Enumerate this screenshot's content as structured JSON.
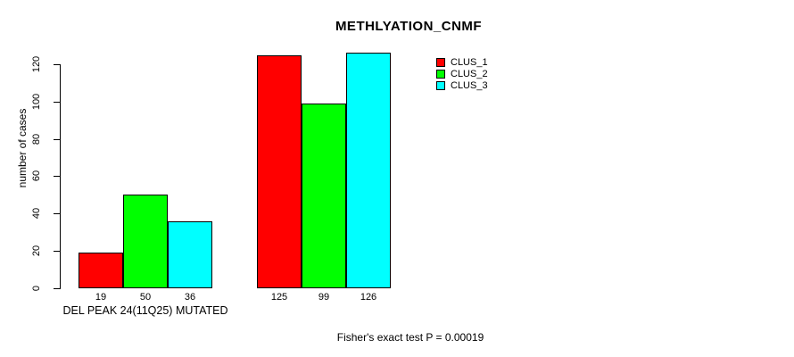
{
  "chart_data": {
    "type": "bar",
    "title": "METHLYATION_CNMF",
    "ylabel": "number of cases",
    "xlabel": "",
    "ylim": [
      0,
      130
    ],
    "y_ticks": [
      0,
      20,
      40,
      60,
      80,
      100,
      120
    ],
    "grid": false,
    "legend_position": "top-right-inside",
    "series": [
      {
        "name": "CLUS_1",
        "color": "#ff0000"
      },
      {
        "name": "CLUS_2",
        "color": "#00ff00"
      },
      {
        "name": "CLUS_3",
        "color": "#00ffff"
      }
    ],
    "groups": [
      {
        "label": "DEL PEAK 24(11Q25) MUTATED",
        "values": [
          19,
          50,
          36
        ]
      },
      {
        "label": "",
        "values": [
          125,
          99,
          126
        ]
      }
    ],
    "bar_value_labels_shown": true,
    "footer": "Fisher's exact test P = 0.00019"
  }
}
